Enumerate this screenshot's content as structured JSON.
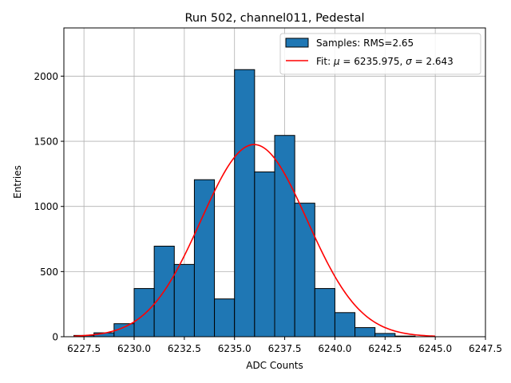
{
  "chart_data": {
    "type": "bar",
    "title": "Run 502, channel011, Pedestal",
    "xlabel": "ADC Counts",
    "ylabel": "Entries",
    "xlim": [
      6226.5,
      6247.5
    ],
    "ylim": [
      0,
      2370
    ],
    "xticks": [
      6227.5,
      6230.0,
      6232.5,
      6235.0,
      6237.5,
      6240.0,
      6242.5,
      6245.0,
      6247.5
    ],
    "xtick_labels": [
      "6227.5",
      "6230.0",
      "6232.5",
      "6235.0",
      "6237.5",
      "6240.0",
      "6242.5",
      "6245.0",
      "6247.5"
    ],
    "yticks": [
      0,
      500,
      1000,
      1500,
      2000
    ],
    "ytick_labels": [
      "0",
      "500",
      "1000",
      "1500",
      "2000"
    ],
    "grid": true,
    "legend_position": "top-right",
    "histogram": {
      "name": "Samples: RMS=2.65",
      "color": "#1f77b4",
      "edge_color": "#000000",
      "bin_edges": [
        6227,
        6228,
        6229,
        6230,
        6231,
        6232,
        6233,
        6234,
        6235,
        6236,
        6237,
        6238,
        6239,
        6240,
        6241,
        6242,
        6243,
        6244,
        6245,
        6246,
        6247
      ],
      "counts": [
        10,
        30,
        100,
        370,
        695,
        555,
        1205,
        290,
        2050,
        1265,
        1545,
        1025,
        370,
        185,
        70,
        25,
        5,
        0,
        0,
        0
      ]
    },
    "fit": {
      "name": "Fit: μ = 6235.975, σ = 2.643",
      "legend_prefix": "Fit: ",
      "legend_mu_symbol": "μ",
      "legend_mu_value": " = 6235.975, ",
      "legend_sigma_symbol": "σ",
      "legend_sigma_value": " = 2.643",
      "color": "#ff0000",
      "mu": 6235.975,
      "sigma": 2.643,
      "amplitude": 1475,
      "x_range": [
        6227,
        6245
      ]
    }
  }
}
